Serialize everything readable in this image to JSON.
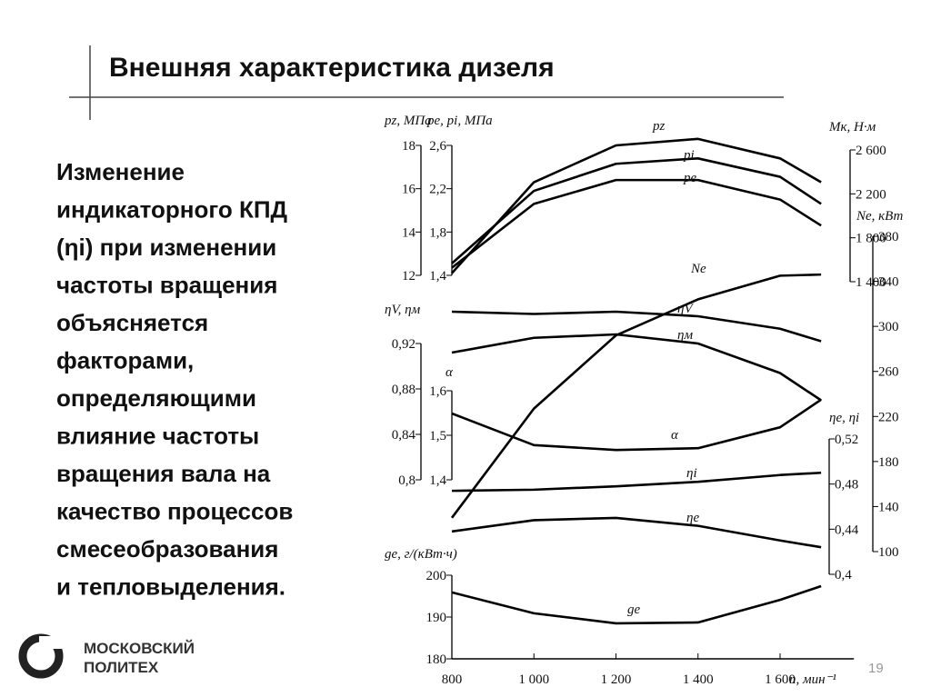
{
  "header": {
    "title": "Внешняя характеристика дизеля"
  },
  "body": {
    "lines": [
      "Изменение",
      "индикаторного КПД",
      "(ηi) при изменении",
      "частоты вращения",
      "объясняется",
      "факторами,",
      "определяющими",
      "влияние частоты",
      "вращения вала на",
      "качество процессов",
      "смесеобразования",
      "и тепловыделения."
    ]
  },
  "logo": {
    "lines": [
      "МОСКОВСКИЙ",
      "ПОЛИТЕХ"
    ]
  },
  "page_number": "19",
  "chart_data": {
    "type": "line",
    "x": [
      800,
      1000,
      1200,
      1400,
      1600,
      1700
    ],
    "xlim": [
      800,
      1780
    ],
    "xticks": [
      800,
      {
        "value": 1000,
        "label": "1 000"
      },
      {
        "value": 1200,
        "label": "1 200"
      },
      {
        "value": 1400,
        "label": "1 400"
      },
      {
        "value": 1600,
        "label": "1 600"
      }
    ],
    "xlabel": "n, мин⁻¹",
    "axes": [
      {
        "label": "pz, МПа",
        "lim": [
          12,
          18
        ],
        "ticks": [
          12,
          14,
          16,
          18
        ]
      },
      {
        "label": "pe, pi, МПа",
        "lim": [
          1.4,
          2.6
        ],
        "ticks": [
          {
            "value": 1.4,
            "label": "1,4"
          },
          {
            "value": 1.8,
            "label": "1,8"
          },
          {
            "value": 2.2,
            "label": "2,2"
          },
          {
            "value": 2.6,
            "label": "2,6"
          }
        ]
      },
      {
        "label": "ηV, ηм",
        "lim": [
          0.8,
          0.92
        ],
        "ticks": [
          {
            "value": 0.8,
            "label": "0,8"
          },
          {
            "value": 0.84,
            "label": "0,84"
          },
          {
            "value": 0.88,
            "label": "0,88"
          },
          {
            "value": 0.92,
            "label": "0,92"
          }
        ]
      },
      {
        "label": "α",
        "lim": [
          1.4,
          1.6
        ],
        "ticks": [
          {
            "value": 1.4,
            "label": "1,4"
          },
          {
            "value": 1.5,
            "label": "1,5"
          },
          {
            "value": 1.6,
            "label": "1,6"
          }
        ]
      },
      {
        "label": "ge, г/(кВт·ч)",
        "lim": [
          180,
          200
        ],
        "ticks": [
          180,
          190,
          200
        ]
      },
      {
        "label": "Mк, Н·м",
        "lim": [
          1400,
          2600
        ],
        "ticks": [
          {
            "value": 1400,
            "label": "1 400"
          },
          {
            "value": 1800,
            "label": "1 800"
          },
          {
            "value": 2200,
            "label": "2 200"
          },
          {
            "value": 2600,
            "label": "2 600"
          }
        ]
      },
      {
        "label": "Ne, кВт",
        "lim": [
          100,
          380
        ],
        "ticks": [
          100,
          140,
          180,
          220,
          260,
          300,
          340,
          380
        ]
      },
      {
        "label": "ηe, ηi",
        "lim": [
          0.4,
          0.52
        ],
        "ticks": [
          {
            "value": 0.4,
            "label": "0,4"
          },
          {
            "value": 0.44,
            "label": "0,44"
          },
          {
            "value": 0.48,
            "label": "0,48"
          },
          {
            "value": 0.52,
            "label": "0,52"
          }
        ]
      }
    ],
    "series": [
      {
        "name": "pz",
        "axis": 0,
        "color": "#000000",
        "values": [
          12.1,
          16.3,
          18.0,
          18.3,
          17.4,
          16.3
        ]
      },
      {
        "name": "pi",
        "axis": 1,
        "color": "#000000",
        "values": [
          1.51,
          2.18,
          2.43,
          2.48,
          2.31,
          2.06
        ]
      },
      {
        "name": "pe",
        "axis": 1,
        "color": "#000000",
        "values": [
          1.47,
          2.06,
          2.28,
          2.28,
          2.1,
          1.86
        ]
      },
      {
        "name": "Ne",
        "axis": 6,
        "color": "#000000",
        "values": [
          130,
          227,
          292,
          324,
          345,
          346
        ]
      },
      {
        "name": "ηV",
        "axis": 2,
        "color": "#000000",
        "values": [
          0.948,
          0.946,
          0.948,
          0.944,
          0.933,
          0.922
        ]
      },
      {
        "name": "ηм",
        "axis": 2,
        "color": "#000000",
        "values": [
          0.912,
          0.925,
          0.928,
          0.92,
          0.894,
          0.87
        ]
      },
      {
        "name": "α",
        "axis": 3,
        "color": "#000000",
        "values": [
          1.549,
          1.478,
          1.467,
          1.471,
          1.518,
          1.58
        ]
      },
      {
        "name": "ηi",
        "axis": 7,
        "color": "#000000",
        "values": [
          0.474,
          0.475,
          0.478,
          0.482,
          0.488,
          0.49
        ]
      },
      {
        "name": "ηe",
        "axis": 7,
        "color": "#000000",
        "values": [
          0.438,
          0.448,
          0.45,
          0.443,
          0.43,
          0.424
        ]
      },
      {
        "name": "ge",
        "axis": 4,
        "color": "#000000",
        "values": [
          195.9,
          190.9,
          188.5,
          188.7,
          194.1,
          197.4
        ]
      }
    ]
  }
}
